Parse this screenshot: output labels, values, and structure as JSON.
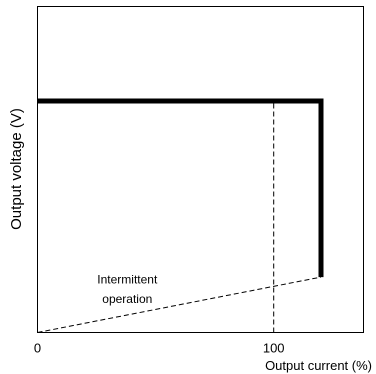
{
  "chart_data": {
    "type": "line",
    "xlabel": "Output current (%)",
    "ylabel": "Output voltage (V)",
    "x_ticks": [
      {
        "value": 0,
        "label": "0"
      },
      {
        "value": 100,
        "label": "100"
      }
    ],
    "xlim": [
      0,
      138
    ],
    "ylim": [
      0,
      100
    ],
    "series": [
      {
        "style": "solid-thick",
        "color": "#000000",
        "x": [
          0,
          120,
          120
        ],
        "y": [
          71,
          71,
          17
        ]
      },
      {
        "style": "dashed",
        "color": "#000000",
        "x": [
          0,
          120
        ],
        "y": [
          0,
          17
        ]
      },
      {
        "style": "dashed",
        "color": "#000000",
        "x": [
          100,
          100
        ],
        "y": [
          0,
          71
        ]
      }
    ],
    "annotations": [
      {
        "text": "Intermittent",
        "x": 38,
        "y": 15
      },
      {
        "text": "operation",
        "x": 38,
        "y": 9
      }
    ],
    "grid": false,
    "legend": "none"
  }
}
